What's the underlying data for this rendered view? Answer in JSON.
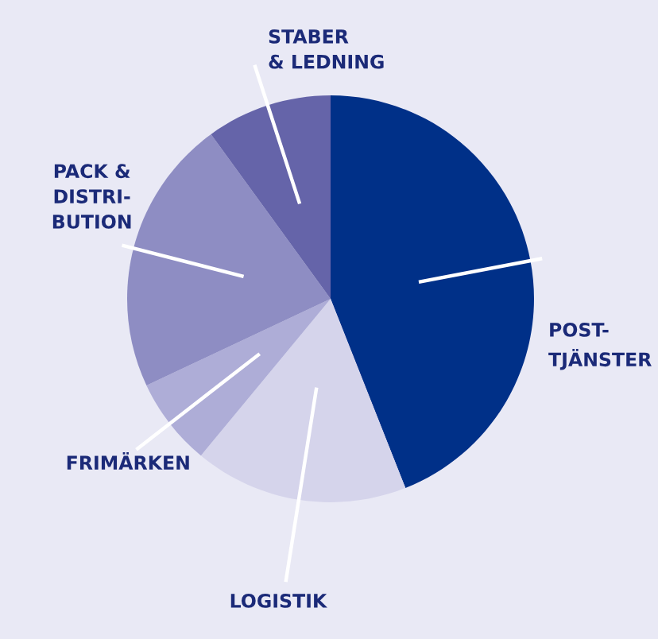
{
  "chart_data": {
    "type": "pie",
    "categories": [
      "POST-\nTJÄNSTER",
      "LOGISTIK",
      "FRIMÄRKEN",
      "PACK &\nDISTRI-\nBUTION",
      "STABER\n& LEDNING"
    ],
    "values": [
      44,
      17,
      7,
      22,
      10
    ],
    "colors": [
      "#003088",
      "#d5d4eb",
      "#aeadd7",
      "#8e8dc3",
      "#6564a9"
    ],
    "legend": false
  }
}
